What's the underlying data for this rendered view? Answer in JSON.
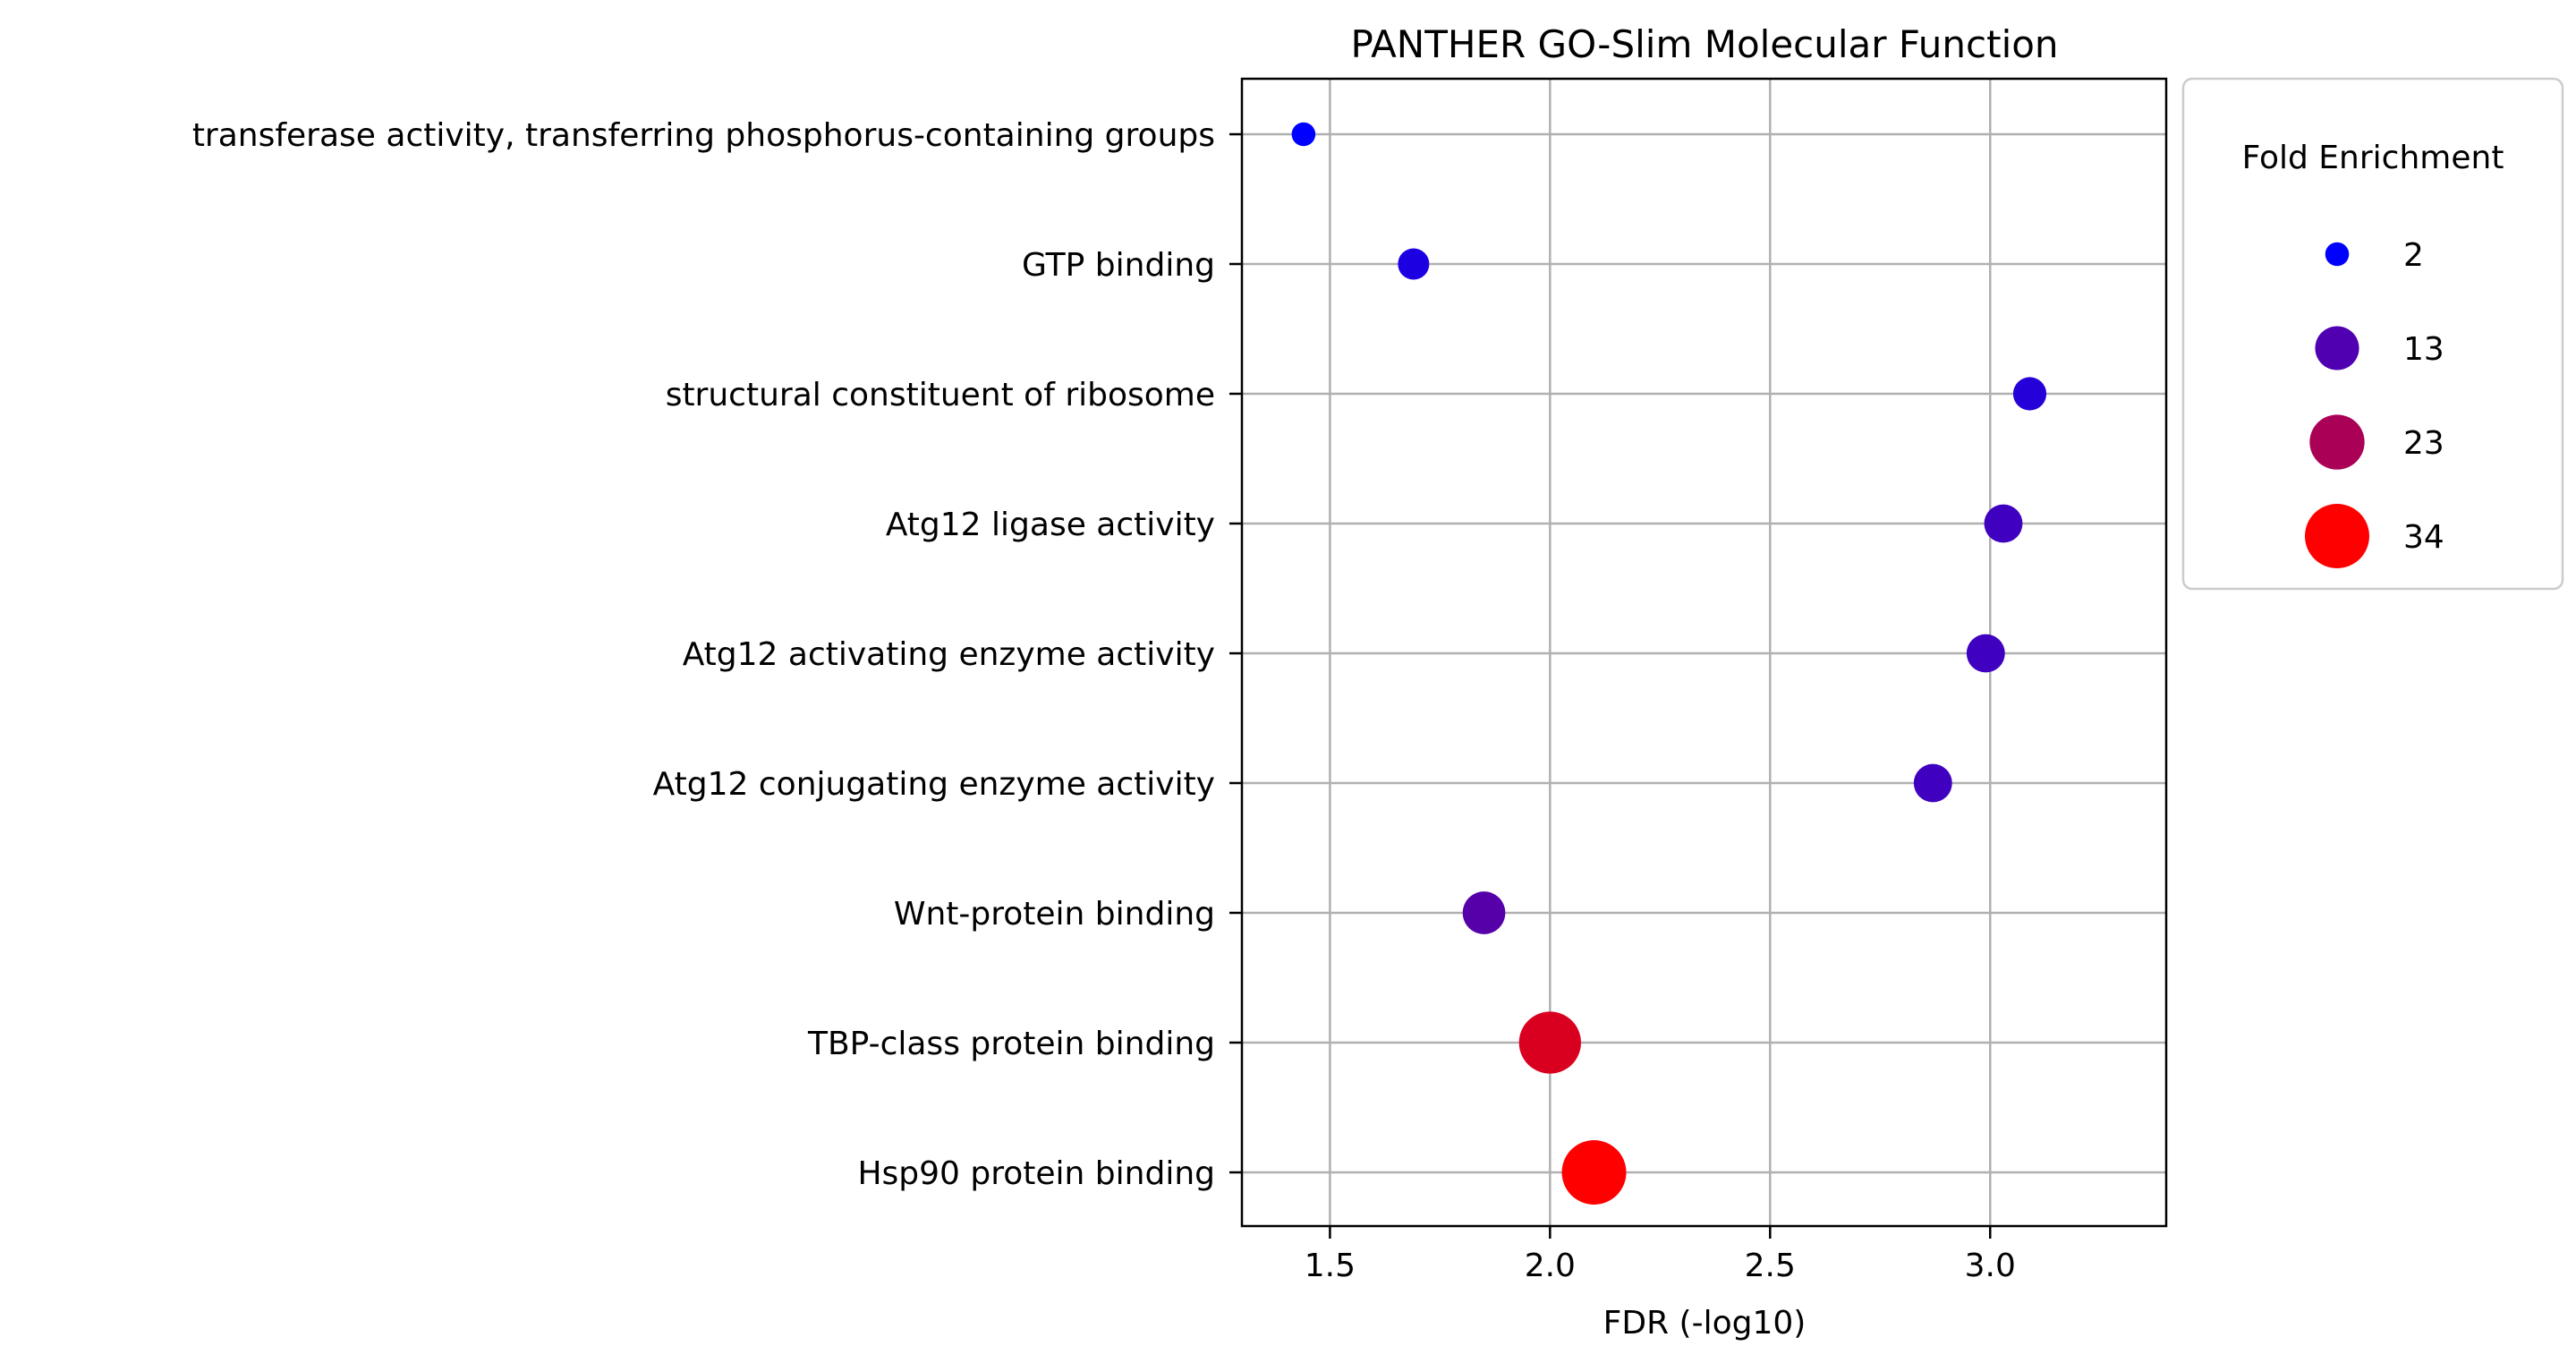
{
  "chart_data": {
    "type": "scatter",
    "title": "PANTHER GO-Slim Molecular Function",
    "xlabel": "FDR (-log10)",
    "ylabel": "",
    "xlim": [
      1.3,
      3.4
    ],
    "xticks": [
      "1.5",
      "2.0",
      "2.5",
      "3.0"
    ],
    "xtick_values": [
      1.5,
      2.0,
      2.5,
      3.0
    ],
    "grid": true,
    "categories": [
      "transferase activity, transferring phosphorus-containing groups",
      "GTP binding",
      "structural constituent of ribosome",
      "Atg12 ligase activity",
      "Atg12 activating enzyme activity",
      "Atg12 conjugating enzyme activity",
      "Wnt-protein binding",
      "TBP-class protein binding",
      "Hsp90 protein binding"
    ],
    "fdr": [
      1.44,
      1.69,
      3.09,
      3.03,
      2.99,
      2.87,
      1.85,
      2.0,
      2.1
    ],
    "fold_enrichment": [
      2,
      5,
      6,
      9,
      9,
      9,
      12,
      31,
      34
    ],
    "colors": [
      "#0000ff",
      "#1d00e2",
      "#2600d9",
      "#3f00c0",
      "#3f00c0",
      "#3f00c0",
      "#5600a9",
      "#d9001f",
      "#ff0000"
    ],
    "legend": {
      "title": "Fold Enrichment",
      "placement": "outside right, top",
      "entries": [
        {
          "label": "2",
          "value": 2,
          "color": "#0000ff"
        },
        {
          "label": "13",
          "value": 13,
          "color": "#5000b0"
        },
        {
          "label": "23",
          "value": 23,
          "color": "#aa0055"
        },
        {
          "label": "34",
          "value": 34,
          "color": "#ff0000"
        }
      ]
    }
  }
}
